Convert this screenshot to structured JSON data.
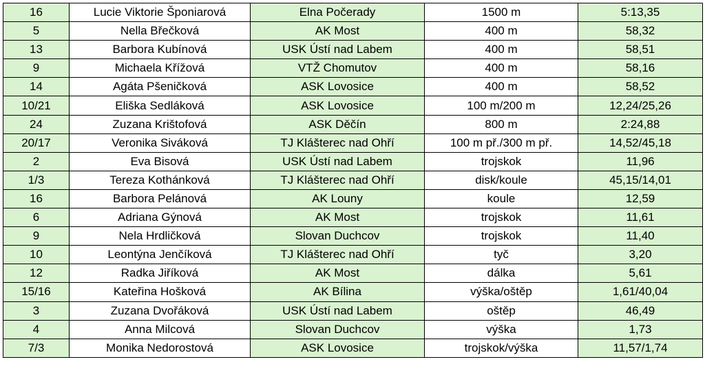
{
  "table": {
    "rows": [
      {
        "num": "16",
        "name": "Lucie Viktorie Šponiarová",
        "club": "Elna Počerady",
        "event": "1500 m",
        "result": "5:13,35"
      },
      {
        "num": "5",
        "name": "Nella Břečková",
        "club": "AK Most",
        "event": "400 m",
        "result": "58,32"
      },
      {
        "num": "13",
        "name": "Barbora Kubínová",
        "club": "USK Ústí nad Labem",
        "event": "400 m",
        "result": "58,51"
      },
      {
        "num": "9",
        "name": "Michaela Křížová",
        "club": "VTŽ Chomutov",
        "event": "400 m",
        "result": "58,16"
      },
      {
        "num": "14",
        "name": "Agáta Pšeničková",
        "club": "ASK Lovosice",
        "event": "400 m",
        "result": "58,52"
      },
      {
        "num": "10/21",
        "name": "Eliška Sedláková",
        "club": "ASK Lovosice",
        "event": "100 m/200 m",
        "result": "12,24/25,26"
      },
      {
        "num": "24",
        "name": "Zuzana Krištofová",
        "club": "ASK Děčín",
        "event": "800 m",
        "result": "2:24,88"
      },
      {
        "num": "20/17",
        "name": "Veronika Siváková",
        "club": "TJ Klášterec nad Ohří",
        "event": "100 m př./300 m př.",
        "result": "14,52/45,18"
      },
      {
        "num": "2",
        "name": "Eva Bisová",
        "club": "USK Ústí nad Labem",
        "event": "trojskok",
        "result": "11,96"
      },
      {
        "num": "1/3",
        "name": "Tereza Kothánková",
        "club": "TJ Klášterec nad Ohří",
        "event": "disk/koule",
        "result": "45,15/14,01"
      },
      {
        "num": "16",
        "name": "Barbora Pelánová",
        "club": "AK Louny",
        "event": "koule",
        "result": "12,59"
      },
      {
        "num": "6",
        "name": "Adriana Gýnová",
        "club": "AK Most",
        "event": "trojskok",
        "result": "11,61"
      },
      {
        "num": "9",
        "name": "Nela Hrdličková",
        "club": "Slovan Duchcov",
        "event": "trojskok",
        "result": "11,40"
      },
      {
        "num": "10",
        "name": "Leontýna Jenčíková",
        "club": "TJ Klášterec nad Ohří",
        "event": "tyč",
        "result": "3,20"
      },
      {
        "num": "12",
        "name": "Radka Jiříková",
        "club": "AK Most",
        "event": "dálka",
        "result": "5,61"
      },
      {
        "num": "15/16",
        "name": "Kateřina Hošková",
        "club": "AK Bílina",
        "event": "výška/oštěp",
        "result": "1,61/40,04"
      },
      {
        "num": "3",
        "name": "Zuzana Dvořáková",
        "club": "USK Ústí nad Labem",
        "event": "oštěp",
        "result": "46,49"
      },
      {
        "num": "4",
        "name": "Anna Milcová",
        "club": "Slovan Duchcov",
        "event": "výška",
        "result": "1,73"
      },
      {
        "num": "7/3",
        "name": "Monika Nedorostová",
        "club": "ASK Lovosice",
        "event": "trojskok/výška",
        "result": "11,57/1,74"
      }
    ]
  },
  "colors": {
    "green_cell": "#d9f2d0",
    "white_cell": "#ffffff",
    "border": "#000000"
  }
}
